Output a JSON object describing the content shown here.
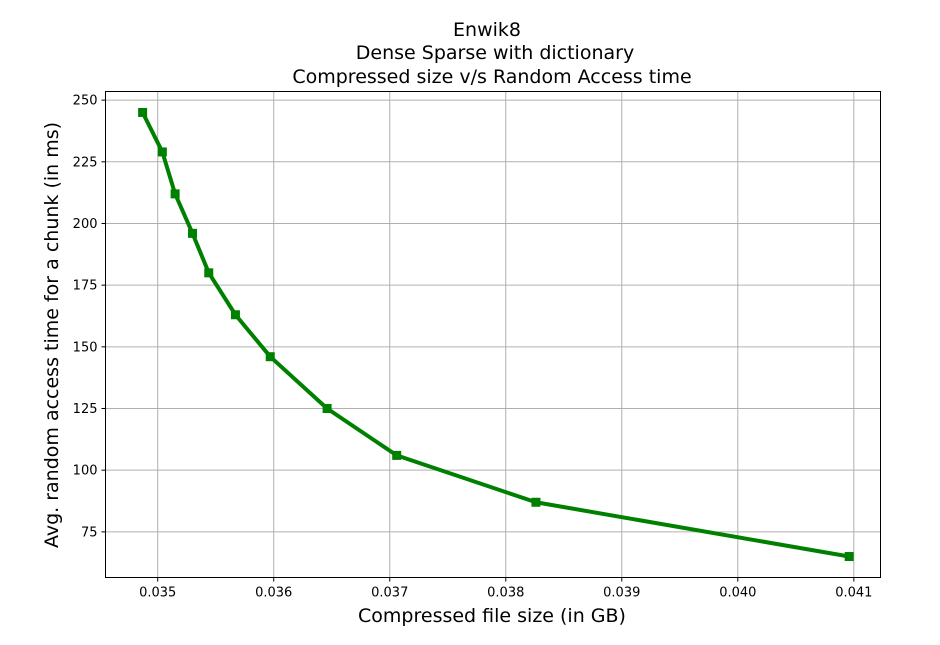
{
  "chart_data": {
    "type": "line",
    "title": [
      "Enwik8",
      "Dense Sparse with dictionary",
      "Compressed size v/s Random Access time"
    ],
    "xlabel": "Compressed file size (in GB)",
    "ylabel": "Avg. random access time for a chunk (in ms)",
    "xlim": [
      0.03455,
      0.04123
    ],
    "ylim": [
      56.5,
      253.5
    ],
    "xticks": [
      0.035,
      0.036,
      0.037,
      0.038,
      0.039,
      0.04,
      0.041
    ],
    "xtick_labels": [
      "0.035",
      "0.036",
      "0.037",
      "0.038",
      "0.039",
      "0.040",
      "0.041"
    ],
    "yticks": [
      75,
      100,
      125,
      150,
      175,
      200,
      225,
      250
    ],
    "ytick_labels": [
      "75",
      "100",
      "125",
      "150",
      "175",
      "200",
      "225",
      "250"
    ],
    "grid": true,
    "series": [
      {
        "color": "#008000",
        "marker": "square",
        "x": [
          0.03487,
          0.03504,
          0.03515,
          0.0353,
          0.03544,
          0.03567,
          0.03597,
          0.03646,
          0.03706,
          0.03826,
          0.04096
        ],
        "y": [
          245,
          229,
          212,
          196,
          180,
          163,
          146,
          125,
          106,
          87,
          65
        ]
      }
    ]
  }
}
